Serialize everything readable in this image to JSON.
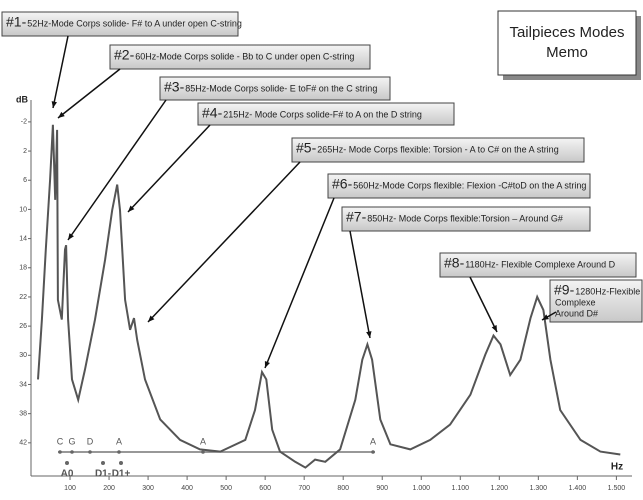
{
  "chart_data": {
    "type": "line",
    "title": [
      "Tailpieces Modes",
      "Memo"
    ],
    "y_label": "dB",
    "x_label": "Hz",
    "color": "#555555",
    "y_inverted": true,
    "xlim": [
      0,
      1540
    ],
    "ylim": [
      -5,
      46
    ],
    "yticks": [
      -2,
      2,
      6,
      10,
      14,
      18,
      22,
      26,
      30,
      34,
      38,
      42
    ],
    "xticks": [
      100,
      200,
      300,
      400,
      500,
      600,
      700,
      800,
      900,
      {
        "value": 1000,
        "label": "1.000"
      },
      {
        "value": 1100,
        "label": "1.100"
      },
      {
        "value": 1200,
        "label": "1.200"
      },
      {
        "value": 1300,
        "label": "1.300"
      },
      {
        "value": 1400,
        "label": "1.400"
      },
      {
        "value": 1500,
        "label": "1.500"
      }
    ],
    "x": [
      18,
      28,
      38,
      49,
      56,
      62,
      67,
      69,
      79,
      87,
      90,
      95,
      105,
      121,
      138,
      164,
      190,
      208,
      221,
      228,
      241,
      254,
      264,
      272,
      292,
      331,
      382,
      433,
      485,
      549,
      574,
      592,
      603,
      618,
      638,
      677,
      703,
      728,
      754,
      792,
      831,
      849,
      862,
      874,
      895,
      921,
      972,
      1023,
      1074,
      1126,
      1164,
      1185,
      1203,
      1228,
      1254,
      1280,
      1297,
      1313,
      1331,
      1356,
      1408,
      1459,
      1510
    ],
    "values": [
      33.3,
      25.1,
      15.5,
      5.9,
      -1.6,
      8.7,
      -0.9,
      22.4,
      25.1,
      15.5,
      14.9,
      25.1,
      33.3,
      36.1,
      32,
      25.1,
      16.9,
      10.1,
      6.6,
      10.1,
      22.4,
      26.5,
      24.9,
      27.9,
      33.3,
      38.8,
      41.6,
      42.9,
      43.2,
      41.6,
      37.5,
      32.3,
      33.3,
      40.2,
      43.2,
      44.6,
      45.4,
      44.3,
      44.6,
      42.9,
      36.1,
      30.6,
      28.5,
      30.6,
      38.8,
      42.2,
      42.9,
      41.6,
      39.5,
      35.4,
      29.9,
      27.3,
      28.5,
      32.7,
      30.6,
      24.9,
      22,
      23.8,
      30.6,
      37.5,
      41.6,
      43.2,
      43.6
    ],
    "note_markers": [
      "C",
      "G",
      "D",
      "A",
      "A",
      "A"
    ],
    "mode_markers": [
      "A0",
      "D1-",
      "D1+"
    ],
    "annotations": [
      {
        "num": "#1-",
        "lines": [
          "52Hz-Mode Corps solide- F# to A under open C-string"
        ]
      },
      {
        "num": "#2-",
        "lines": [
          "60Hz-Mode Corps solide - Bb to C under open C-string"
        ]
      },
      {
        "num": "#3-",
        "lines": [
          "85Hz-Mode Corps solide- E toF# on the C string"
        ]
      },
      {
        "num": "#4-",
        "lines": [
          "215Hz- Mode Corps solide-F# to A on the D string"
        ]
      },
      {
        "num": "#5-",
        "lines": [
          "265Hz- Mode Corps flexible: Torsion - A to C# on the A string"
        ]
      },
      {
        "num": "#6-",
        "lines": [
          "560Hz-Mode Corps flexible: Flexion -C#toD on the A string"
        ]
      },
      {
        "num": "#7-",
        "lines": [
          "850Hz- Mode Corps flexible:Torsion – Around G#"
        ]
      },
      {
        "num": "#8-",
        "lines": [
          "1180Hz- Flexible Complexe  Around D"
        ]
      },
      {
        "num": "#9-",
        "lines": [
          "1280Hz-Flexible",
          "Complexe",
          "Around D#"
        ]
      }
    ]
  }
}
